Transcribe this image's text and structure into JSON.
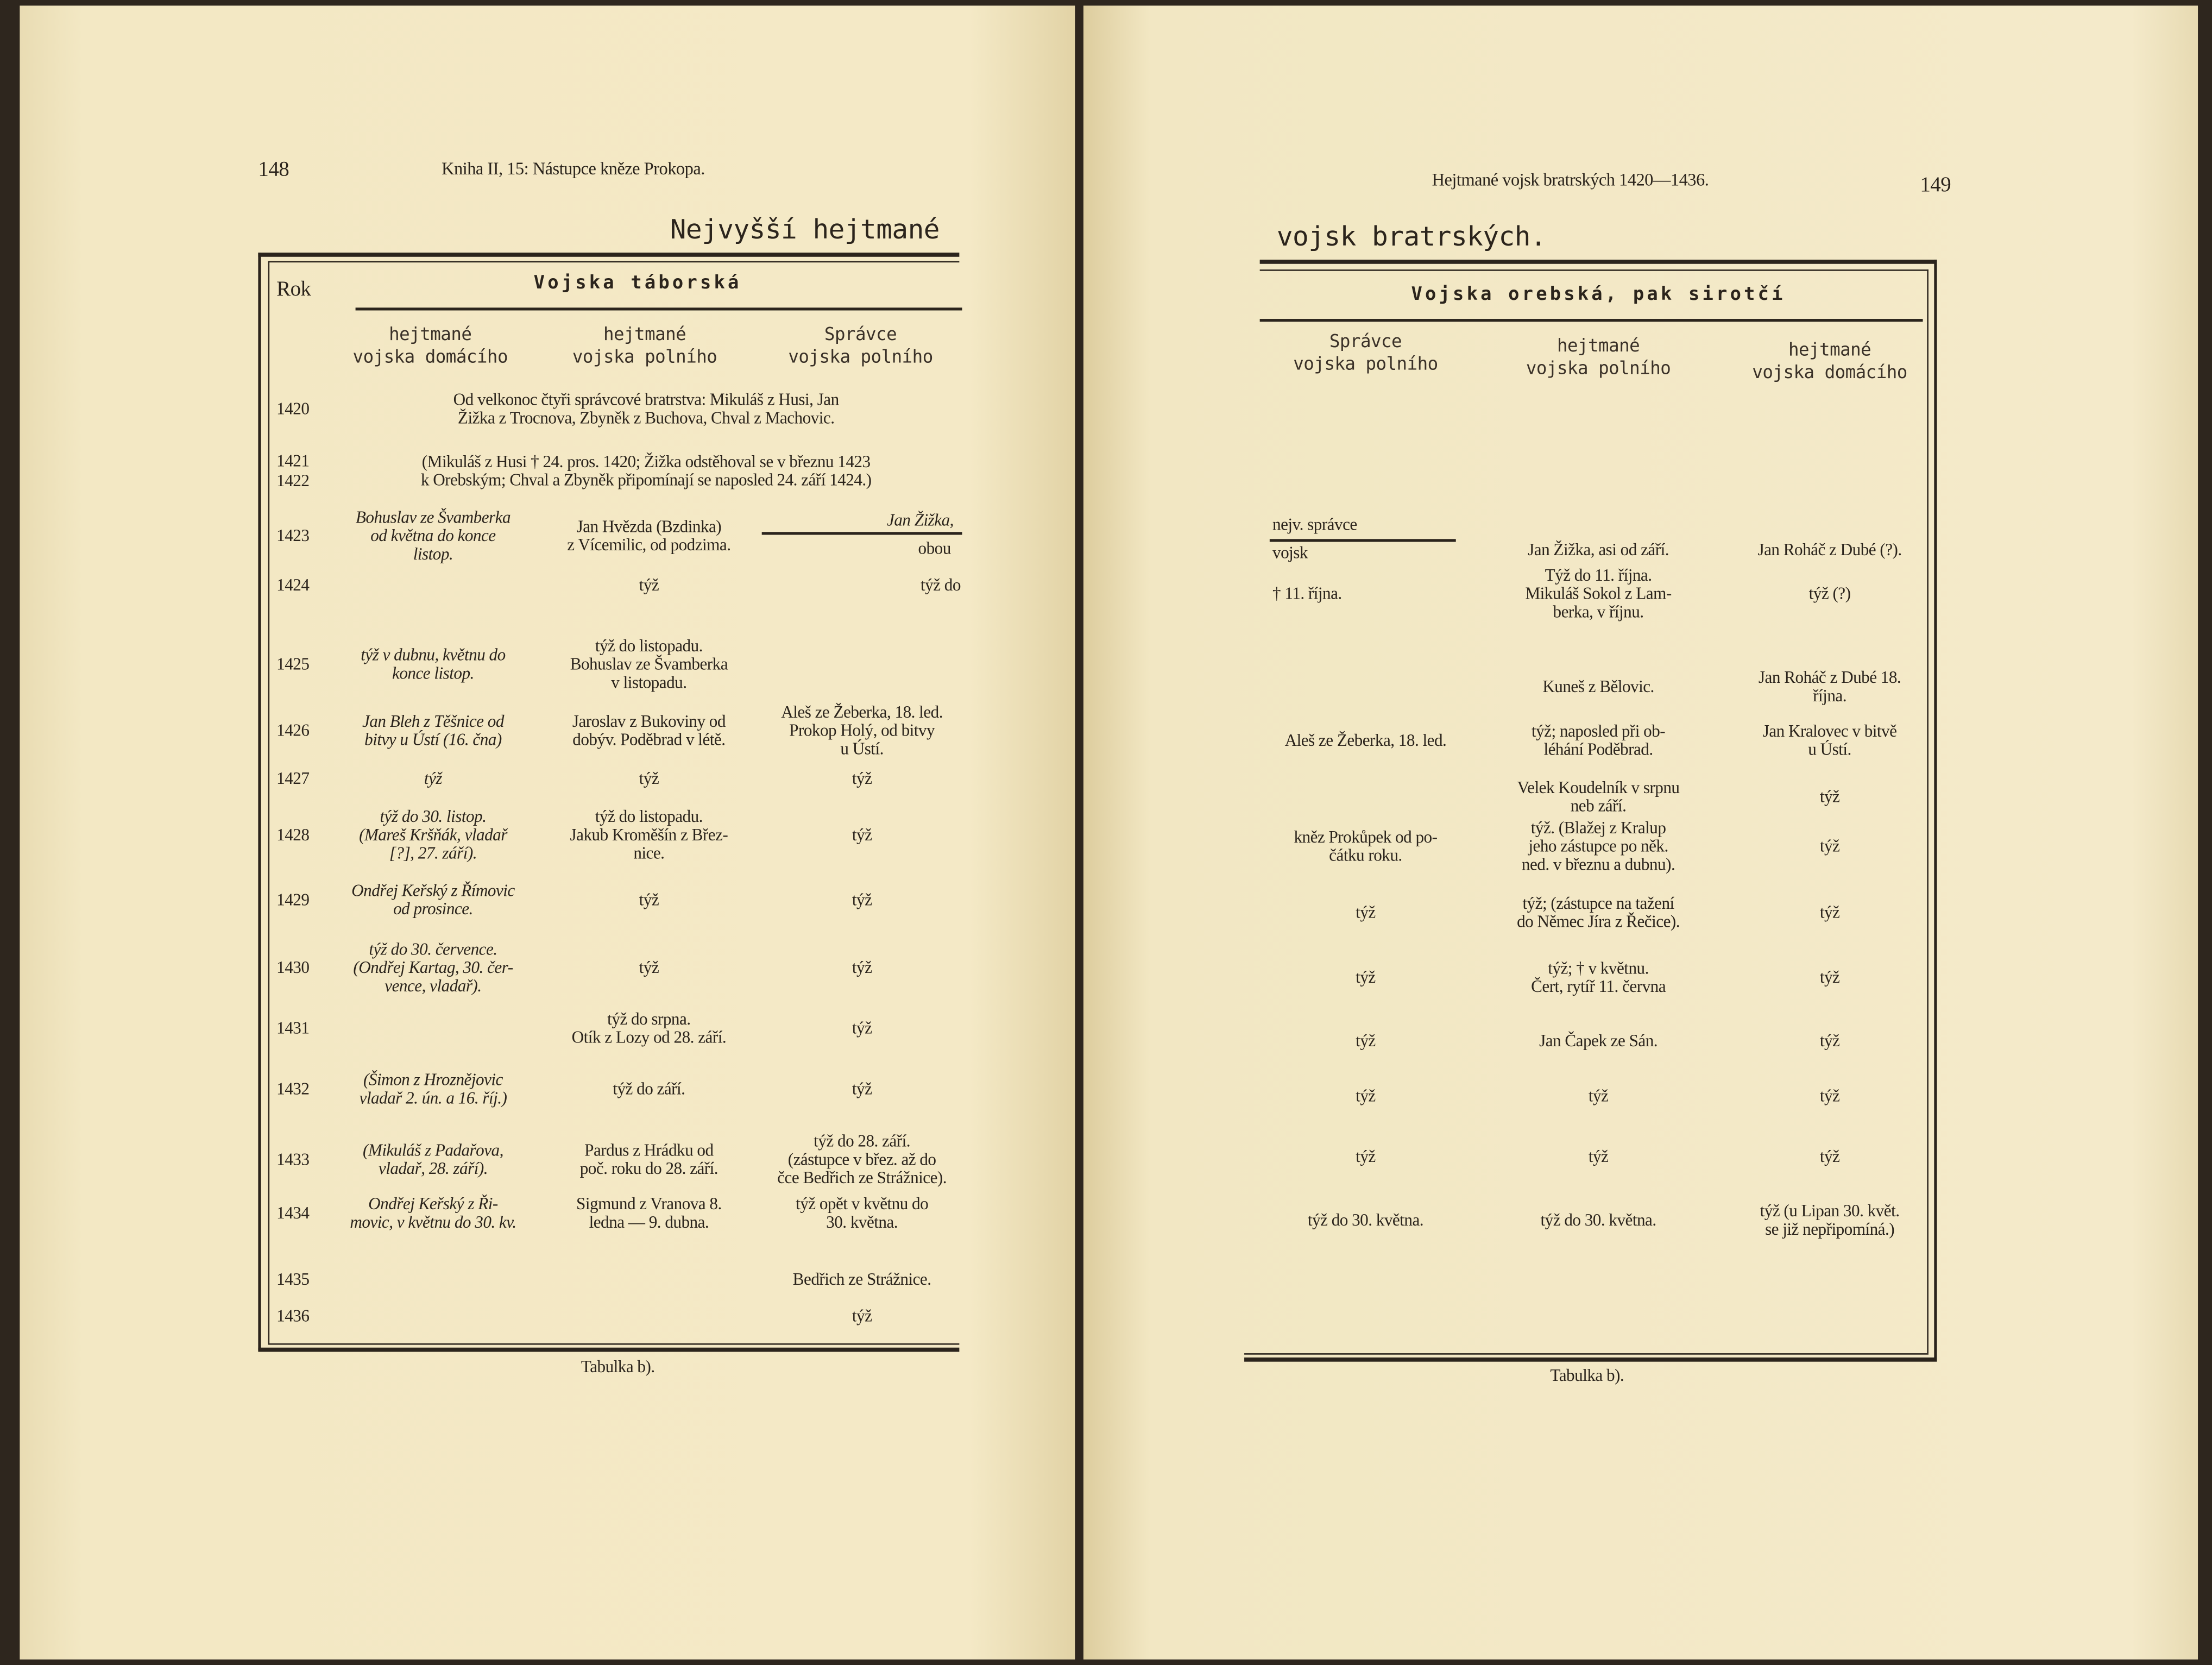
{
  "left_page": {
    "page_number": "148",
    "running_head": "Kniha II, 15: Nástupce kněze Prokopa.",
    "title": "Nejvyšší hejtmané",
    "col_year": "Rok",
    "group_heading": "Vojska táborská",
    "headers": [
      "hejtmané\nvojska domácího",
      "hejtmané\nvojska polního",
      "Správce\nvojska polního"
    ],
    "rows": [
      {
        "year": "1420",
        "span": "Od velkonoc čtyři správcové bratrstva: Mikuláš z Husi, Jan\nŽižka z Trocnova, Zbyněk z Buchova, Chval z Machovic."
      },
      {
        "year": "1421",
        "year2": "1422",
        "span": "(Mikuláš z Husi † 24. pros. 1420; Žižka odstěhoval se v březnu 1423\nk Orebským; Chval a Zbyněk připomínají se naposled 24. září 1424.)"
      },
      {
        "year": "1423",
        "c1": "Bohuslav ze Švamberka\nod května do konce\nlistop.",
        "c2": "Jan Hvězda (Bzdinka)\nz Vícemilic, od podzima.",
        "c3": "Jan Žižka,",
        "c3b": "obou"
      },
      {
        "year": "1424",
        "c1": "",
        "c2": "týž",
        "c3": "týž do"
      },
      {
        "year": "1425",
        "c1": "týž v dubnu, květnu do\nkonce listop.",
        "c2": "týž do listopadu.\nBohuslav ze Švamberka\nv listopadu.",
        "c3": ""
      },
      {
        "year": "1426",
        "c1": "Jan Bleh z Těšnice od\nbitvy u Ústí (16. čna)",
        "c2": "Jaroslav z Bukoviny od\ndobýv. Poděbrad v létě.",
        "c3": "Aleš ze Žeberka, 18. led.\nProkop Holý, od bitvy\nu Ústí."
      },
      {
        "year": "1427",
        "c1": "týž",
        "c2": "týž",
        "c3": "týž"
      },
      {
        "year": "1428",
        "c1": "týž do 30. listop.\n(Mareš Kršňák, vladař\n[?], 27. září).",
        "c2": "týž do listopadu.\nJakub Kroměšín z Břez-\nnice.",
        "c3": "týž"
      },
      {
        "year": "1429",
        "c1": "Ondřej Keřský z Římovic\nod prosince.",
        "c2": "týž",
        "c3": "týž"
      },
      {
        "year": "1430",
        "c1": "týž do 30. července.\n(Ondřej Kartag, 30. čer-\nvence, vladař).",
        "c2": "týž",
        "c3": "týž"
      },
      {
        "year": "1431",
        "c1": "",
        "c2": "týž do srpna.\nOtík z Lozy od 28. září.",
        "c3": "týž"
      },
      {
        "year": "1432",
        "c1": "(Šimon z Hroznějovic\nvladař 2. ún. a 16. říj.)",
        "c2": "týž do září.",
        "c3": "týž"
      },
      {
        "year": "1433",
        "c1": "(Mikuláš z Padařova,\nvladař, 28. září).",
        "c2": "Pardus z Hrádku od\npoč. roku do 28. září.",
        "c3": "týž do 28. září.\n(zástupce v břez. až do\nčce Bedřich ze Strážnice)."
      },
      {
        "year": "1434",
        "c1": "Ondřej Keřský z Ři-\nmovic, v květnu do 30. kv.",
        "c2": "Sigmund z Vranova 8.\nledna — 9. dubna.",
        "c3": "týž opět v květnu do\n30. května."
      },
      {
        "year": "1435",
        "c1": "",
        "c2": "",
        "c3": "Bedřich ze Strážnice."
      },
      {
        "year": "1436",
        "c1": "",
        "c2": "",
        "c3": "týž"
      }
    ],
    "caption": "Tabulka b)."
  },
  "right_page": {
    "running_head": "Hejtmané vojsk bratrských 1420—1436.",
    "page_number": "149",
    "title": "vojsk bratrských.",
    "group_heading": "Vojska orebská, pak sirotčí",
    "headers": [
      "Správce\nvojska polního",
      "hejtmané\nvojska polního",
      "hejtmané\nvojska domácího"
    ],
    "rows": [
      {
        "c1": "nejv. správce",
        "c1b": "vojsk",
        "c2": "Jan Žižka, asi od září.",
        "c3": "Jan Roháč z Dubé (?)."
      },
      {
        "c1": "† 11. října.",
        "c2": "Týž do 11. října.\nMikuláš Sokol z Lam-\nberka, v říjnu.",
        "c3": "týž (?)"
      },
      {
        "c1": "",
        "c2": "Kuneš z Bělovic.",
        "c3": "Jan Roháč z Dubé 18.\nříjna."
      },
      {
        "c1": "Aleš ze Žeberka, 18. led.",
        "c2": "týž; naposled při ob-\nléhání Poděbrad.",
        "c3": "Jan Kralovec v bitvě\nu Ústí."
      },
      {
        "c1": "",
        "c2": "Velek Koudelník v srpnu\nneb září.",
        "c3": "týž"
      },
      {
        "c1": "kněz Prokůpek od po-\nčátku roku.",
        "c2": "týž. (Blažej z Kralup\njeho zástupce po něk.\nned. v březnu a dubnu).",
        "c3": "týž"
      },
      {
        "c1": "týž",
        "c2": "týž; (zástupce na tažení\ndo Němec Jíra z Řečice).",
        "c3": "týž"
      },
      {
        "c1": "týž",
        "c2": "týž; † v květnu.\nČert, rytíř 11. června",
        "c3": "týž"
      },
      {
        "c1": "týž",
        "c2": "Jan Čapek ze Sán.",
        "c3": "týž"
      },
      {
        "c1": "týž",
        "c2": "týž",
        "c3": "týž"
      },
      {
        "c1": "týž",
        "c2": "týž",
        "c3": "týž"
      },
      {
        "c1": "týž do 30. května.",
        "c2": "týž do 30. května.",
        "c3": "týž (u Lipan 30. květ.\nse již nepřipomíná.)"
      }
    ],
    "caption": "Tabulka b)."
  }
}
